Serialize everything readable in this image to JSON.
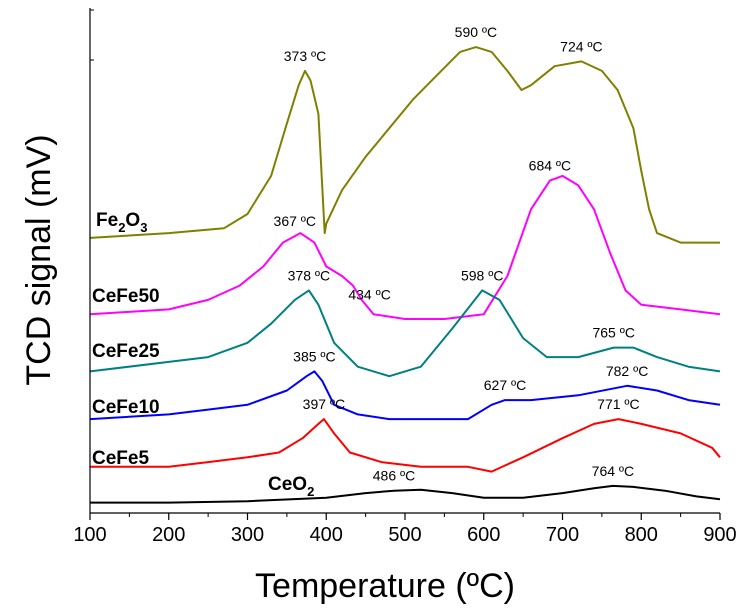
{
  "chart_data": {
    "type": "line",
    "xlabel": "Temperature (ºC)",
    "ylabel": "TCD signal (mV)",
    "xlim": [
      100,
      900
    ],
    "xticks": [
      "100",
      "200",
      "300",
      "400",
      "500",
      "600",
      "700",
      "800",
      "900"
    ],
    "ylim": [
      0,
      100
    ],
    "grid": false,
    "legend": "labels beside curves",
    "series": [
      {
        "name": "Fe2O3",
        "name_main": "Fe",
        "name_sub1": "2",
        "name_mid": "O",
        "name_sub2": "3",
        "color": "#808000",
        "x": [
          100,
          200,
          270,
          300,
          330,
          350,
          365,
          373,
          380,
          390,
          398,
          400,
          420,
          450,
          480,
          510,
          540,
          570,
          590,
          610,
          630,
          648,
          660,
          690,
          724,
          750,
          770,
          790,
          800,
          810,
          820,
          850,
          900
        ],
        "y": [
          56,
          57,
          58,
          61,
          69,
          80,
          88,
          91,
          89,
          82,
          57,
          59,
          66,
          73,
          79,
          85,
          90,
          95,
          96,
          95,
          91,
          87,
          88,
          92,
          93,
          91,
          87,
          79,
          70,
          62,
          57,
          55,
          55
        ]
      },
      {
        "name": "CeFe50",
        "color": "#ff00ff",
        "x": [
          100,
          200,
          250,
          290,
          320,
          345,
          367,
          385,
          400,
          420,
          434,
          445,
          460,
          500,
          550,
          600,
          630,
          660,
          684,
          700,
          720,
          740,
          760,
          780,
          800,
          850,
          900
        ],
        "y": [
          40,
          41,
          43,
          46,
          50,
          55,
          57,
          55,
          50,
          48,
          46,
          43,
          40,
          39,
          39,
          40,
          48,
          62,
          68,
          69,
          67,
          62,
          53,
          45,
          42,
          41,
          40
        ]
      },
      {
        "name": "CeFe25",
        "color": "#008080",
        "x": [
          100,
          200,
          250,
          300,
          330,
          360,
          378,
          390,
          410,
          440,
          480,
          520,
          560,
          598,
          620,
          650,
          680,
          720,
          765,
          790,
          820,
          860,
          900
        ],
        "y": [
          28,
          30,
          31,
          34,
          38,
          43,
          45,
          42,
          34,
          29,
          27,
          29,
          37,
          45,
          43,
          35,
          31,
          31,
          33,
          33,
          31,
          29,
          28
        ]
      },
      {
        "name": "CeFe10",
        "color": "#0000ff",
        "x": [
          100,
          200,
          250,
          300,
          350,
          375,
          385,
          395,
          410,
          440,
          480,
          550,
          580,
          610,
          627,
          660,
          720,
          782,
          820,
          860,
          900
        ],
        "y": [
          18,
          19,
          20,
          21,
          24,
          27,
          28,
          26,
          21,
          19,
          18,
          18,
          18,
          21,
          22,
          22,
          23,
          25,
          24,
          22,
          21
        ]
      },
      {
        "name": "CeFe5",
        "color": "#ff0000",
        "x": [
          100,
          200,
          250,
          300,
          340,
          370,
          390,
          397,
          410,
          430,
          470,
          520,
          580,
          610,
          650,
          700,
          740,
          771,
          800,
          850,
          890,
          900
        ],
        "y": [
          8,
          8,
          9,
          10,
          11,
          14,
          17,
          18,
          15,
          11,
          9,
          8,
          8,
          7,
          10,
          14,
          17,
          18,
          17,
          15,
          12,
          10
        ]
      },
      {
        "name": "CeO2",
        "name_main": "CeO",
        "name_sub1": "2",
        "color": "#000000",
        "x": [
          100,
          200,
          300,
          400,
          450,
          486,
          520,
          560,
          600,
          650,
          700,
          740,
          764,
          790,
          830,
          870,
          900
        ],
        "y": [
          0.5,
          0.5,
          0.8,
          1.5,
          2.5,
          3,
          3.2,
          2.5,
          1.5,
          1.5,
          2.5,
          3.5,
          4,
          3.8,
          3,
          1.8,
          1.2
        ]
      }
    ],
    "annotations": [
      {
        "text": "373 ºC",
        "x": 373,
        "series": 0
      },
      {
        "text": "590 ºC",
        "x": 590,
        "series": 0
      },
      {
        "text": "724 ºC",
        "x": 724,
        "series": 0
      },
      {
        "text": "367 ºC",
        "x": 360,
        "series": 1
      },
      {
        "text": "434 ºC",
        "x": 455,
        "series": 1
      },
      {
        "text": "684 ºC",
        "x": 684,
        "series": 1
      },
      {
        "text": "378 ºC",
        "x": 378,
        "series": 2
      },
      {
        "text": "598 ºC",
        "x": 598,
        "series": 2
      },
      {
        "text": "765 ºC",
        "x": 765,
        "series": 2
      },
      {
        "text": "385 ºC",
        "x": 385,
        "series": 3
      },
      {
        "text": "627 ºC",
        "x": 627,
        "series": 3
      },
      {
        "text": "782 ºC",
        "x": 782,
        "series": 3
      },
      {
        "text": "397 ºC",
        "x": 397,
        "series": 4
      },
      {
        "text": "771 ºC",
        "x": 771,
        "series": 4
      },
      {
        "text": "486 ºC",
        "x": 486,
        "series": 5
      },
      {
        "text": "764 ºC",
        "x": 764,
        "series": 5
      }
    ]
  }
}
